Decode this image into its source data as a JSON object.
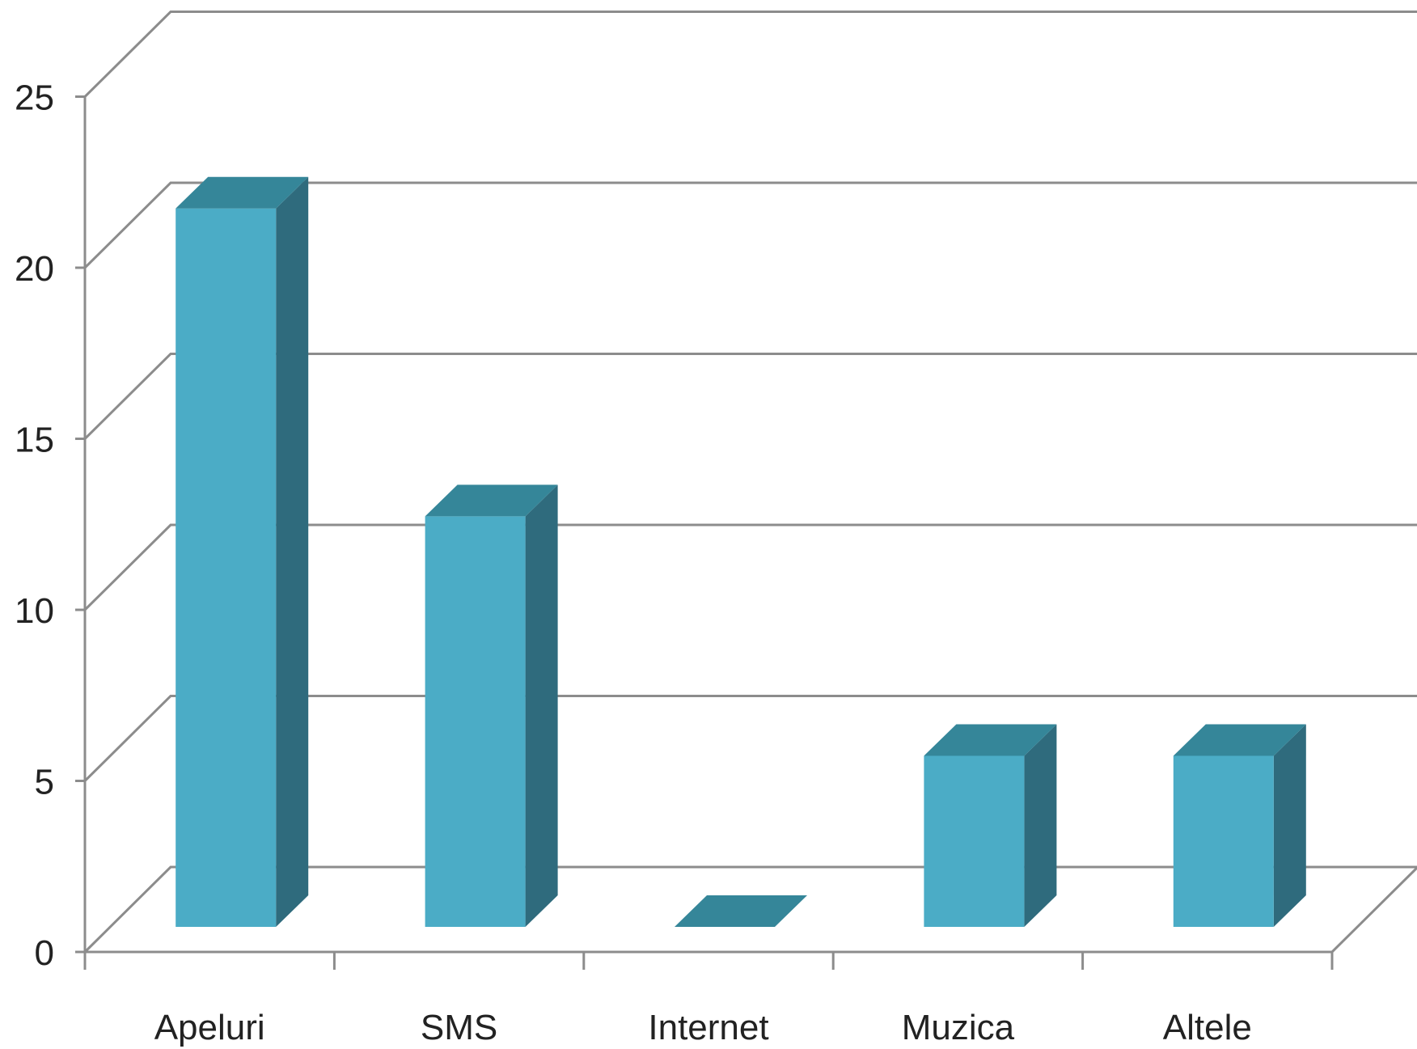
{
  "chart_data": {
    "type": "bar",
    "style": "3d-column",
    "categories": [
      "Apeluri",
      "SMS",
      "Internet",
      "Muzica",
      "Altele"
    ],
    "values": [
      21,
      12,
      0,
      5,
      5
    ],
    "title": "",
    "xlabel": "",
    "ylabel": "",
    "ylim": [
      0,
      25
    ],
    "yticks": [
      "0",
      "5",
      "10",
      "15",
      "20",
      "25"
    ],
    "grid": true,
    "legend": "none",
    "colors": {
      "bar_front": "#4BACC6",
      "bar_top": "#358699",
      "bar_side": "#2F6B7D",
      "gridline": "#8C8C8C",
      "axis": "#8C8C8C",
      "text": "#222222"
    }
  }
}
